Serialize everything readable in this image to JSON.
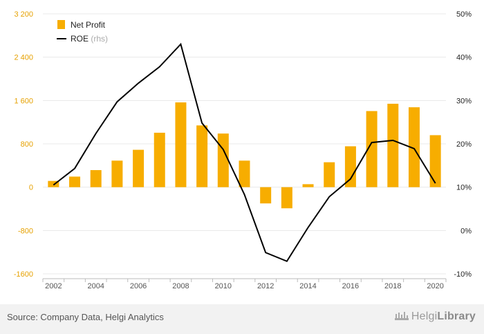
{
  "chart_data": {
    "type": "bar",
    "categories": [
      "2002",
      "2003",
      "2004",
      "2005",
      "2006",
      "2007",
      "2008",
      "2009",
      "2010",
      "2011",
      "2012",
      "2013",
      "2014",
      "2015",
      "2016",
      "2017",
      "2018",
      "2019",
      "2020"
    ],
    "x_tick_labels": [
      "2002",
      "2004",
      "2006",
      "2008",
      "2010",
      "2012",
      "2014",
      "2016",
      "2018",
      "2020"
    ],
    "series": [
      {
        "name": "Net Profit",
        "type": "bar",
        "axis": "left",
        "color": "#f7ad00",
        "values": [
          115,
          195,
          315,
          490,
          690,
          1005,
          1565,
          1140,
          990,
          490,
          -300,
          -390,
          55,
          460,
          755,
          1405,
          1540,
          1475,
          960
        ]
      },
      {
        "name": "ROE",
        "name_suffix": "(rhs)",
        "type": "line",
        "axis": "right",
        "color": "#000000",
        "values": [
          10.5,
          14.3,
          22.4,
          29.7,
          34.0,
          37.8,
          43.0,
          24.8,
          18.7,
          8.3,
          -5.1,
          -7.1,
          0.7,
          7.8,
          11.9,
          20.3,
          20.8,
          18.9,
          10.9
        ]
      }
    ],
    "left_axis": {
      "ylim": [
        -1600,
        3200
      ],
      "ticks": [
        -1600,
        -800,
        0,
        800,
        1600,
        2400,
        3200
      ],
      "tick_labels": [
        "-1600",
        "-800",
        "0",
        "800",
        "1 600",
        "2 400",
        "3 200"
      ]
    },
    "right_axis": {
      "ylim": [
        -10,
        50
      ],
      "ticks": [
        -10,
        0,
        10,
        20,
        30,
        40,
        50
      ],
      "tick_labels": [
        "-10%",
        "0%",
        "10%",
        "20%",
        "30%",
        "40%",
        "50%"
      ]
    },
    "legend": {
      "placement": "top-left"
    },
    "grid": true,
    "colors": {
      "bar": "#f7ad00",
      "line": "#000000",
      "left_tick": "#e6a100",
      "grid": "#e8e8e8"
    }
  },
  "footer": {
    "source": "Source: Company Data, Helgi Analytics",
    "logo": {
      "part1": "Helgi",
      "part2": "Library"
    }
  }
}
